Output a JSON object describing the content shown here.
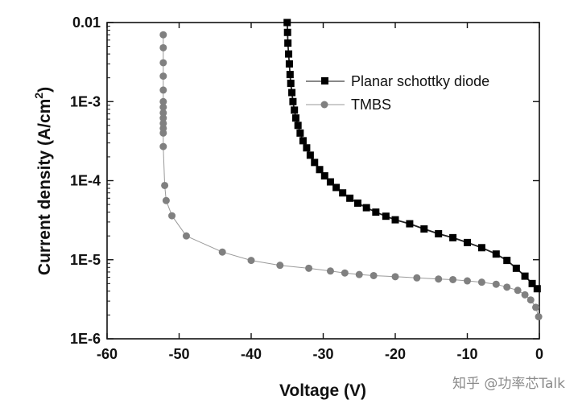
{
  "chart_data": {
    "type": "line",
    "xlabel": "Voltage (V)",
    "ylabel": "Current density (A/cm",
    "ylabel_sup": "2",
    "ylabel_end": ")",
    "xlim": [
      -60,
      0
    ],
    "ylim": [
      1e-06,
      0.01
    ],
    "yscale": "log",
    "x_ticks": [
      -60,
      -50,
      -40,
      -30,
      -20,
      -10,
      0
    ],
    "x_tick_labels": [
      "-60",
      "-50",
      "-40",
      "-30",
      "-20",
      "-10",
      "0"
    ],
    "y_ticks": [
      1e-06,
      1e-05,
      0.0001,
      0.001,
      0.01
    ],
    "y_tick_labels": [
      "1E-6",
      "1E-5",
      "1E-4",
      "1E-3",
      "0.01"
    ],
    "legend_position": "top-right",
    "series": [
      {
        "name": "Planar schottky diode",
        "marker": "square",
        "color": "#000000",
        "points": [
          [
            -35.0,
            0.01
          ],
          [
            -34.95,
            0.0075
          ],
          [
            -34.9,
            0.0055
          ],
          [
            -34.8,
            0.004
          ],
          [
            -34.7,
            0.003
          ],
          [
            -34.6,
            0.0022
          ],
          [
            -34.5,
            0.0017
          ],
          [
            -34.35,
            0.0013
          ],
          [
            -34.2,
            0.001
          ],
          [
            -34.0,
            0.00078
          ],
          [
            -33.8,
            0.00062
          ],
          [
            -33.5,
            0.0005
          ],
          [
            -33.2,
            0.0004
          ],
          [
            -32.8,
            0.00032
          ],
          [
            -32.3,
            0.00026
          ],
          [
            -31.8,
            0.00021
          ],
          [
            -31.2,
            0.00017
          ],
          [
            -30.5,
            0.000138
          ],
          [
            -29.8,
            0.000115
          ],
          [
            -29.0,
            9.65e-05
          ],
          [
            -28.2,
            8.2e-05
          ],
          [
            -27.3,
            7e-05
          ],
          [
            -26.3,
            6e-05
          ],
          [
            -25.2,
            5.2e-05
          ],
          [
            -24.0,
            4.55e-05
          ],
          [
            -22.7,
            4e-05
          ],
          [
            -21.3,
            3.55e-05
          ],
          [
            -20.0,
            3.2e-05
          ],
          [
            -18.0,
            2.85e-05
          ],
          [
            -16.0,
            2.45e-05
          ],
          [
            -14.0,
            2.13e-05
          ],
          [
            -12.0,
            1.9e-05
          ],
          [
            -10.0,
            1.65e-05
          ],
          [
            -8.0,
            1.42e-05
          ],
          [
            -6.0,
            1.18e-05
          ],
          [
            -4.5,
            9.8e-06
          ],
          [
            -3.2,
            7.8e-06
          ],
          [
            -2.0,
            6.2e-06
          ],
          [
            -1.0,
            5e-06
          ],
          [
            -0.3,
            4.3e-06
          ]
        ]
      },
      {
        "name": "TMBS",
        "marker": "circle",
        "color": "#808080",
        "points": [
          [
            -52.2,
            0.007
          ],
          [
            -52.2,
            0.0048
          ],
          [
            -52.2,
            0.0031
          ],
          [
            -52.2,
            0.0021
          ],
          [
            -52.2,
            0.0014
          ],
          [
            -52.2,
            0.001
          ],
          [
            -52.2,
            0.00085
          ],
          [
            -52.2,
            0.00072
          ],
          [
            -52.2,
            0.00062
          ],
          [
            -52.2,
            0.00053
          ],
          [
            -52.2,
            0.00046
          ],
          [
            -52.2,
            0.0004
          ],
          [
            -52.2,
            0.00027
          ],
          [
            -52.0,
            8.7e-05
          ],
          [
            -51.8,
            5.6e-05
          ],
          [
            -51.0,
            3.6e-05
          ],
          [
            -49.0,
            2e-05
          ],
          [
            -44.0,
            1.25e-05
          ],
          [
            -40.0,
            9.8e-06
          ],
          [
            -36.0,
            8.5e-06
          ],
          [
            -32.0,
            7.8e-06
          ],
          [
            -29.0,
            7.2e-06
          ],
          [
            -27.0,
            6.8e-06
          ],
          [
            -25.0,
            6.5e-06
          ],
          [
            -23.0,
            6.3e-06
          ],
          [
            -20.0,
            6.1e-06
          ],
          [
            -17.0,
            5.9e-06
          ],
          [
            -14.0,
            5.7e-06
          ],
          [
            -12.0,
            5.6e-06
          ],
          [
            -10.0,
            5.4e-06
          ],
          [
            -8.0,
            5.2e-06
          ],
          [
            -6.0,
            4.9e-06
          ],
          [
            -4.5,
            4.5e-06
          ],
          [
            -3.0,
            4.1e-06
          ],
          [
            -2.0,
            3.6e-06
          ],
          [
            -1.2,
            3.1e-06
          ],
          [
            -0.5,
            2.5e-06
          ],
          [
            -0.1,
            1.9e-06
          ]
        ]
      }
    ]
  },
  "watermark": "知乎 @功率芯Talk"
}
